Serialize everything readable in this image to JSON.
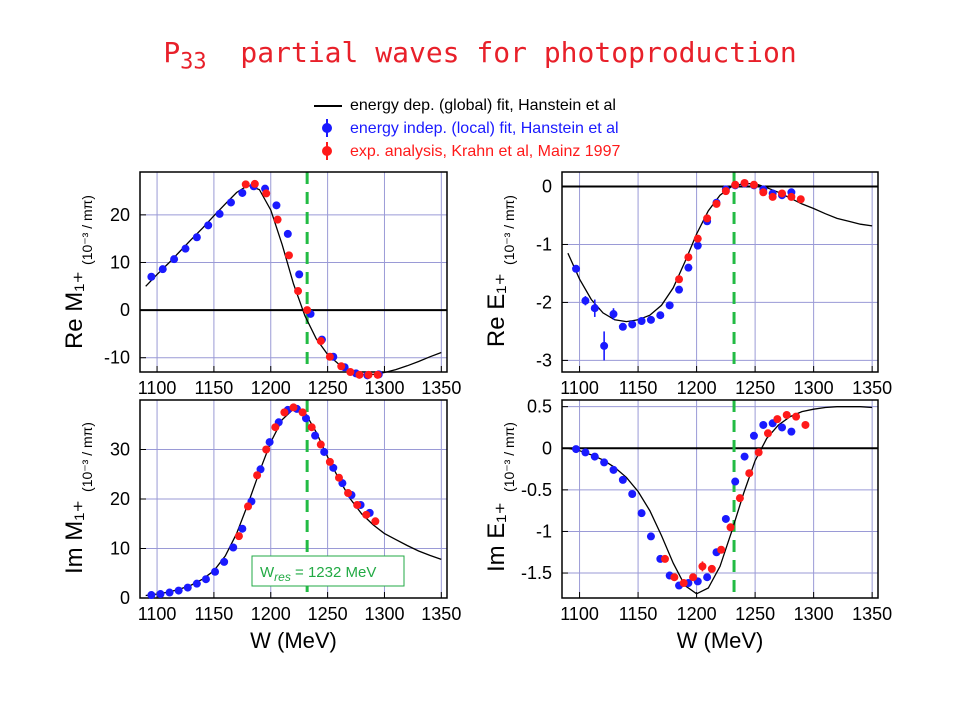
{
  "title": {
    "main": "P",
    "sub": "33",
    "rest": "  partial waves for photoproduction"
  },
  "legend": [
    {
      "label": "energy dep. (global) fit, Hanstein et al",
      "color": "#000000",
      "marker": "line"
    },
    {
      "label": "energy indep. (local) fit, Hanstein et al",
      "color": "#1a1aff",
      "marker": "dot"
    },
    {
      "label": "exp. analysis, Krahn et al, Mainz 1997",
      "color": "#ff1a1a",
      "marker": "dot"
    }
  ],
  "annotation": "W\tres = 1232 MeV",
  "chart_data": [
    {
      "type": "line",
      "ylabel": "Re M₁₊",
      "unit": "(10⁻³ / mπ)",
      "xlabel": "",
      "xlim": [
        1085,
        1355
      ],
      "ylim": [
        -13,
        29
      ],
      "xticks": [
        1100,
        1150,
        1200,
        1250,
        1300,
        1350
      ],
      "yticks": [
        -10,
        0,
        10,
        20
      ],
      "ytick_labels": [
        "-10",
        "0",
        "10",
        "20"
      ],
      "resonance_line": 1232,
      "zero_line": true,
      "fit": {
        "x": [
          1090,
          1100,
          1110,
          1120,
          1130,
          1140,
          1150,
          1160,
          1170,
          1180,
          1190,
          1200,
          1210,
          1220,
          1230,
          1240,
          1250,
          1260,
          1270,
          1280,
          1290,
          1300,
          1310,
          1320,
          1330,
          1340,
          1350
        ],
        "y": [
          5,
          7.5,
          9.8,
          12.3,
          14.8,
          17.2,
          19.8,
          22.3,
          24.7,
          26.2,
          25.3,
          21,
          13.8,
          5.5,
          -1.2,
          -6,
          -9.3,
          -11.4,
          -12.7,
          -13.5,
          -13.5,
          -13.1,
          -12.5,
          -11.7,
          -10.8,
          -9.8,
          -8.9
        ]
      },
      "series": [
        {
          "name": "energy indep. (local) fit, Hanstein et al",
          "color": "#1a1aff",
          "x": [
            1095,
            1105,
            1115,
            1125,
            1135,
            1145,
            1155,
            1165,
            1175,
            1185,
            1195,
            1205,
            1215,
            1225,
            1235,
            1245,
            1255,
            1265,
            1275,
            1285,
            1295
          ],
          "y": [
            7,
            8.6,
            10.7,
            12.9,
            15.3,
            17.8,
            20.2,
            22.6,
            24.6,
            26,
            25.5,
            22,
            16,
            7.5,
            -0.8,
            -6.2,
            -9.8,
            -12,
            -13.3,
            -13.7,
            -13.5
          ],
          "err": [
            0.3,
            0.3,
            0.3,
            0.3,
            0.3,
            0.3,
            0.3,
            0.3,
            0.3,
            0.3,
            0.3,
            0.3,
            0.3,
            0.3,
            0.3,
            0.3,
            0.3,
            0.3,
            0.3,
            0.3,
            0.3
          ]
        },
        {
          "name": "exp. analysis, Krahn et al, Mainz 1997",
          "color": "#ff1a1a",
          "x": [
            1178,
            1186,
            1196,
            1206,
            1216,
            1224,
            1232,
            1244,
            1252,
            1262,
            1270,
            1278,
            1286,
            1294
          ],
          "y": [
            26.4,
            26.5,
            24.5,
            19,
            11.5,
            4,
            0,
            -6.5,
            -9.8,
            -11.8,
            -13,
            -13.6,
            -13.6,
            -13.6
          ],
          "err": [
            0.4,
            0.4,
            0.4,
            0.4,
            0.4,
            0.4,
            0.4,
            0.4,
            0.4,
            0.4,
            0.4,
            0.4,
            0.4,
            0.4
          ]
        }
      ]
    },
    {
      "type": "line",
      "ylabel": "Re E₁₊",
      "unit": "(10⁻³ / mπ)",
      "xlabel": "",
      "xlim": [
        1085,
        1355
      ],
      "ylim": [
        -3.2,
        0.25
      ],
      "xticks": [
        1100,
        1150,
        1200,
        1250,
        1300,
        1350
      ],
      "yticks": [
        -3,
        -2,
        -1,
        0
      ],
      "ytick_labels": [
        "-3",
        "-2",
        "-1",
        "0"
      ],
      "resonance_line": 1232,
      "zero_line": true,
      "fit": {
        "x": [
          1090,
          1100,
          1110,
          1120,
          1130,
          1140,
          1150,
          1160,
          1170,
          1180,
          1190,
          1200,
          1210,
          1220,
          1230,
          1240,
          1250,
          1260,
          1270,
          1280,
          1290,
          1300,
          1310,
          1320,
          1330,
          1340,
          1350
        ],
        "y": [
          -1.15,
          -1.6,
          -1.95,
          -2.18,
          -2.3,
          -2.33,
          -2.3,
          -2.22,
          -2.05,
          -1.75,
          -1.3,
          -0.82,
          -0.42,
          -0.15,
          0,
          0.05,
          0.05,
          -0.02,
          -0.1,
          -0.2,
          -0.3,
          -0.38,
          -0.47,
          -0.55,
          -0.6,
          -0.65,
          -0.68
        ]
      },
      "series": [
        {
          "name": "energy indep. (local) fit, Hanstein et al",
          "color": "#1a1aff",
          "x": [
            1097,
            1105,
            1113,
            1121,
            1129,
            1137,
            1145,
            1153,
            1161,
            1169,
            1177,
            1185,
            1193,
            1201,
            1209,
            1217,
            1225,
            1233,
            1241,
            1249,
            1257,
            1265,
            1273,
            1281
          ],
          "y": [
            -1.42,
            -1.97,
            -2.1,
            -2.75,
            -2.2,
            -2.42,
            -2.38,
            -2.32,
            -2.3,
            -2.22,
            -2.05,
            -1.78,
            -1.4,
            -1.02,
            -0.6,
            -0.28,
            -0.05,
            0.02,
            0.05,
            0.02,
            -0.05,
            -0.12,
            -0.15,
            -0.1
          ],
          "err": [
            0.05,
            0.08,
            0.15,
            0.25,
            0.1,
            0.05,
            0.05,
            0.05,
            0.05,
            0.05,
            0.05,
            0.05,
            0.05,
            0.05,
            0.05,
            0.05,
            0.05,
            0.05,
            0.05,
            0.05,
            0.05,
            0.05,
            0.05,
            0.05
          ]
        },
        {
          "name": "exp. analysis, Krahn et al, Mainz 1997",
          "color": "#ff1a1a",
          "x": [
            1185,
            1193,
            1201,
            1209,
            1217,
            1225,
            1233,
            1241,
            1249,
            1257,
            1265,
            1273,
            1281,
            1289
          ],
          "y": [
            -1.6,
            -1.22,
            -0.9,
            -0.55,
            -0.3,
            -0.08,
            0.03,
            0.06,
            0.03,
            -0.1,
            -0.18,
            -0.12,
            -0.18,
            -0.22
          ],
          "err": [
            0.06,
            0.06,
            0.06,
            0.06,
            0.06,
            0.06,
            0.06,
            0.06,
            0.06,
            0.06,
            0.06,
            0.06,
            0.06,
            0.06
          ]
        }
      ]
    },
    {
      "type": "line",
      "ylabel": "Im M₁₊",
      "unit": "(10⁻³ / mπ)",
      "xlabel": "W (MeV)",
      "xlim": [
        1085,
        1355
      ],
      "ylim": [
        0,
        40
      ],
      "xticks": [
        1100,
        1150,
        1200,
        1250,
        1300,
        1350
      ],
      "yticks": [
        0,
        10,
        20,
        30
      ],
      "ytick_labels": [
        "0",
        "10",
        "20",
        "30"
      ],
      "resonance_line": 1232,
      "zero_line": false,
      "fit": {
        "x": [
          1090,
          1100,
          1110,
          1120,
          1130,
          1140,
          1150,
          1160,
          1170,
          1180,
          1190,
          1200,
          1210,
          1220,
          1230,
          1240,
          1250,
          1260,
          1270,
          1280,
          1290,
          1300,
          1310,
          1320,
          1330,
          1340,
          1350
        ],
        "y": [
          0.5,
          0.8,
          1.2,
          1.8,
          2.6,
          3.8,
          5.5,
          8.5,
          13,
          19,
          25.5,
          31.5,
          36,
          38.2,
          37.5,
          33.5,
          28.5,
          24,
          20,
          17,
          14.8,
          13,
          11.8,
          10.6,
          9.5,
          8.6,
          7.8
        ]
      },
      "series": [
        {
          "name": "energy indep. (local) fit, Hanstein et al",
          "color": "#1a1aff",
          "x": [
            1095,
            1103,
            1111,
            1119,
            1127,
            1135,
            1143,
            1151,
            1159,
            1167,
            1175,
            1183,
            1191,
            1199,
            1207,
            1215,
            1223,
            1231,
            1239,
            1247,
            1255,
            1263,
            1271,
            1279,
            1287
          ],
          "y": [
            0.6,
            0.8,
            1.1,
            1.5,
            2.1,
            2.9,
            3.8,
            5.3,
            7.3,
            10.2,
            14,
            19.5,
            26,
            31.5,
            35.5,
            38,
            38.2,
            36.3,
            32.8,
            29.5,
            26.3,
            23.2,
            20.8,
            18.8,
            17.2
          ],
          "err": [
            0.3,
            0.3,
            0.3,
            0.3,
            0.3,
            0.3,
            0.3,
            0.3,
            0.3,
            0.3,
            0.3,
            0.3,
            0.3,
            0.3,
            0.3,
            0.3,
            0.3,
            0.3,
            0.3,
            0.3,
            0.3,
            0.3,
            0.3,
            0.3,
            0.3
          ]
        },
        {
          "name": "exp. analysis, Krahn et al, Mainz 1997",
          "color": "#ff1a1a",
          "x": [
            1172,
            1180,
            1188,
            1196,
            1204,
            1212,
            1220,
            1228,
            1236,
            1244,
            1252,
            1260,
            1268,
            1276,
            1284,
            1292
          ],
          "y": [
            12.5,
            18.5,
            24.8,
            30,
            34.5,
            37.5,
            38.5,
            37.5,
            34.5,
            31,
            27.5,
            24.3,
            21.2,
            18.8,
            16.8,
            15.5
          ],
          "err": [
            0.4,
            0.4,
            0.4,
            0.4,
            0.4,
            0.4,
            0.4,
            0.4,
            0.4,
            0.4,
            0.4,
            0.4,
            0.4,
            0.4,
            0.4,
            0.4
          ]
        }
      ]
    },
    {
      "type": "line",
      "ylabel": "Im E₁₊",
      "unit": "(10⁻³ / mπ)",
      "xlabel": "W (MeV)",
      "xlim": [
        1085,
        1355
      ],
      "ylim": [
        -1.8,
        0.58
      ],
      "xticks": [
        1100,
        1150,
        1200,
        1250,
        1300,
        1350
      ],
      "yticks": [
        -1.5,
        -1,
        -0.5,
        0,
        0.5
      ],
      "ytick_labels": [
        "-1.5",
        "-1",
        "-0.5",
        "0",
        "0.5"
      ],
      "resonance_line": 1232,
      "zero_line": true,
      "fit": {
        "x": [
          1090,
          1100,
          1110,
          1120,
          1130,
          1140,
          1150,
          1160,
          1170,
          1180,
          1190,
          1200,
          1210,
          1220,
          1230,
          1240,
          1250,
          1260,
          1270,
          1280,
          1290,
          1300,
          1310,
          1320,
          1330,
          1340,
          1350
        ],
        "y": [
          0,
          -0.03,
          -0.08,
          -0.14,
          -0.23,
          -0.35,
          -0.52,
          -0.75,
          -1.05,
          -1.38,
          -1.65,
          -1.75,
          -1.68,
          -1.42,
          -1.0,
          -0.55,
          -0.15,
          0.12,
          0.28,
          0.38,
          0.44,
          0.47,
          0.49,
          0.5,
          0.5,
          0.5,
          0.49
        ]
      },
      "series": [
        {
          "name": "energy indep. (local) fit, Hanstein et al",
          "color": "#1a1aff",
          "x": [
            1097,
            1105,
            1113,
            1121,
            1129,
            1137,
            1145,
            1153,
            1161,
            1169,
            1177,
            1185,
            1193,
            1201,
            1209,
            1217,
            1225,
            1233,
            1241,
            1249,
            1257,
            1265,
            1273,
            1281
          ],
          "y": [
            -0.01,
            -0.05,
            -0.1,
            -0.17,
            -0.26,
            -0.38,
            -0.55,
            -0.78,
            -1.06,
            -1.33,
            -1.53,
            -1.65,
            -1.62,
            -1.6,
            -1.55,
            -1.25,
            -0.85,
            -0.4,
            -0.1,
            0.15,
            0.28,
            0.3,
            0.25,
            0.2
          ],
          "err": [
            0.02,
            0.02,
            0.02,
            0.02,
            0.02,
            0.02,
            0.02,
            0.02,
            0.02,
            0.02,
            0.02,
            0.03,
            0.03,
            0.04,
            0.04,
            0.04,
            0.04,
            0.04,
            0.04,
            0.04,
            0.04,
            0.04,
            0.04,
            0.04
          ]
        },
        {
          "name": "exp. analysis, Krahn et al, Mainz 1997",
          "color": "#ff1a1a",
          "x": [
            1173,
            1181,
            1189,
            1197,
            1205,
            1213,
            1221,
            1229,
            1237,
            1245,
            1253,
            1261,
            1269,
            1277,
            1285,
            1293
          ],
          "y": [
            -1.33,
            -1.55,
            -1.62,
            -1.55,
            -1.42,
            -1.45,
            -1.22,
            -0.95,
            -0.6,
            -0.3,
            -0.05,
            0.18,
            0.35,
            0.4,
            0.38,
            0.28
          ],
          "err": [
            0.04,
            0.04,
            0.04,
            0.04,
            0.06,
            0.04,
            0.04,
            0.04,
            0.04,
            0.04,
            0.04,
            0.04,
            0.04,
            0.04,
            0.04,
            0.04
          ]
        }
      ]
    }
  ]
}
